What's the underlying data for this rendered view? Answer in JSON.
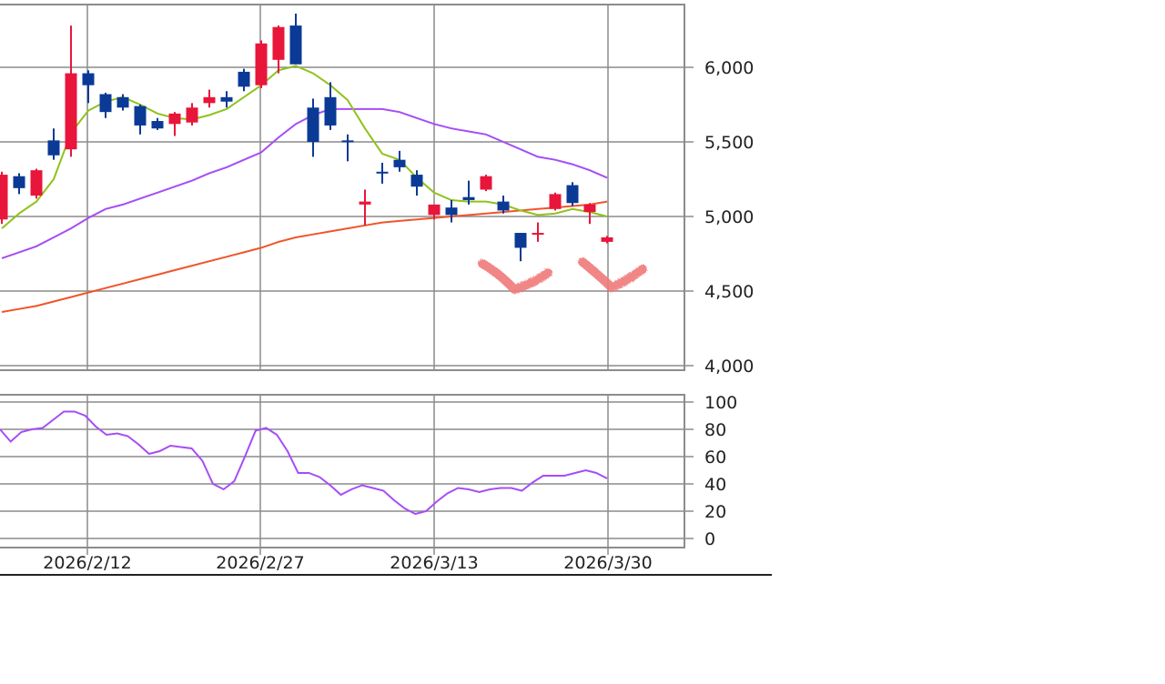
{
  "chart_data": [
    {
      "type": "candlestick",
      "title": "",
      "x_ticks": [
        "2026/2/12",
        "2026/2/27",
        "2026/3/13",
        "2026/3/30"
      ],
      "y_ticks": [
        "4,000",
        "4,500",
        "5,000",
        "5,500",
        "6,000"
      ],
      "ylim": [
        4000,
        6450
      ],
      "grid": true,
      "colors": {
        "up": "#e8163a",
        "down": "#0a3a96",
        "ma_short": "#8fc21a",
        "ma_mid": "#a64df5",
        "ma_long": "#f0552a",
        "frame": "#8c8c8c"
      },
      "candles": [
        {
          "o": 4980,
          "h": 5300,
          "l": 4950,
          "c": 5280
        },
        {
          "o": 5270,
          "h": 5290,
          "l": 5150,
          "c": 5190
        },
        {
          "o": 5140,
          "h": 5320,
          "l": 5120,
          "c": 5310
        },
        {
          "o": 5510,
          "h": 5590,
          "l": 5380,
          "c": 5410
        },
        {
          "o": 5450,
          "h": 6280,
          "l": 5400,
          "c": 5960
        },
        {
          "o": 5960,
          "h": 5980,
          "l": 5760,
          "c": 5880
        },
        {
          "o": 5820,
          "h": 5830,
          "l": 5660,
          "c": 5700
        },
        {
          "o": 5800,
          "h": 5820,
          "l": 5710,
          "c": 5730
        },
        {
          "o": 5740,
          "h": 5750,
          "l": 5550,
          "c": 5610
        },
        {
          "o": 5640,
          "h": 5660,
          "l": 5580,
          "c": 5590
        },
        {
          "o": 5620,
          "h": 5700,
          "l": 5540,
          "c": 5690
        },
        {
          "o": 5630,
          "h": 5760,
          "l": 5610,
          "c": 5730
        },
        {
          "o": 5760,
          "h": 5850,
          "l": 5730,
          "c": 5800
        },
        {
          "o": 5800,
          "h": 5840,
          "l": 5730,
          "c": 5770
        },
        {
          "o": 5970,
          "h": 5990,
          "l": 5840,
          "c": 5870
        },
        {
          "o": 5880,
          "h": 6180,
          "l": 5860,
          "c": 6160
        },
        {
          "o": 6050,
          "h": 6280,
          "l": 5960,
          "c": 6270
        },
        {
          "o": 6280,
          "h": 6360,
          "l": 6020,
          "c": 6020
        },
        {
          "o": 5730,
          "h": 5790,
          "l": 5400,
          "c": 5500
        },
        {
          "o": 5800,
          "h": 5900,
          "l": 5580,
          "c": 5610
        },
        {
          "o": 5510,
          "h": 5550,
          "l": 5370,
          "c": 5500
        },
        {
          "o": 5080,
          "h": 5180,
          "l": 4940,
          "c": 5100
        },
        {
          "o": 5300,
          "h": 5360,
          "l": 5220,
          "c": 5290
        },
        {
          "o": 5380,
          "h": 5440,
          "l": 5300,
          "c": 5330
        },
        {
          "o": 5280,
          "h": 5310,
          "l": 5140,
          "c": 5200
        },
        {
          "o": 5010,
          "h": 5080,
          "l": 4980,
          "c": 5080
        },
        {
          "o": 5060,
          "h": 5110,
          "l": 4960,
          "c": 5010
        },
        {
          "o": 5130,
          "h": 5240,
          "l": 5080,
          "c": 5110
        },
        {
          "o": 5180,
          "h": 5280,
          "l": 5170,
          "c": 5270
        },
        {
          "o": 5100,
          "h": 5140,
          "l": 5020,
          "c": 5040
        },
        {
          "o": 4890,
          "h": 4890,
          "l": 4700,
          "c": 4790
        },
        {
          "o": 4880,
          "h": 4960,
          "l": 4830,
          "c": 4890
        },
        {
          "o": 5050,
          "h": 5160,
          "l": 5040,
          "c": 5150
        },
        {
          "o": 5210,
          "h": 5230,
          "l": 5070,
          "c": 5090
        },
        {
          "o": 5030,
          "h": 5090,
          "l": 4950,
          "c": 5080
        },
        {
          "o": 4830,
          "h": 4870,
          "l": 4820,
          "c": 4860
        }
      ],
      "ma_short": [
        4920,
        5020,
        5100,
        5250,
        5560,
        5710,
        5770,
        5800,
        5750,
        5690,
        5660,
        5650,
        5680,
        5720,
        5800,
        5880,
        5980,
        6010,
        5960,
        5880,
        5780,
        5590,
        5420,
        5380,
        5260,
        5160,
        5110,
        5100,
        5100,
        5080,
        5040,
        5010,
        5020,
        5050,
        5030,
        5000
      ],
      "ma_mid": [
        4720,
        4760,
        4800,
        4860,
        4920,
        4990,
        5050,
        5080,
        5120,
        5160,
        5200,
        5240,
        5290,
        5330,
        5380,
        5430,
        5530,
        5620,
        5680,
        5720,
        5720,
        5720,
        5720,
        5700,
        5660,
        5620,
        5590,
        5570,
        5550,
        5500,
        5450,
        5400,
        5380,
        5350,
        5310,
        5260
      ],
      "ma_long": [
        4360,
        4380,
        4400,
        4430,
        4460,
        4490,
        4520,
        4550,
        4580,
        4610,
        4640,
        4670,
        4700,
        4730,
        4760,
        4790,
        4830,
        4860,
        4880,
        4900,
        4920,
        4940,
        4960,
        4970,
        4980,
        4990,
        5000,
        5010,
        5020,
        5030,
        5040,
        5050,
        5060,
        5070,
        5080,
        5100
      ]
    },
    {
      "type": "line",
      "title": "",
      "y_ticks": [
        "0",
        "20",
        "40",
        "60",
        "80",
        "100"
      ],
      "ylim": [
        0,
        100
      ],
      "grid": true,
      "color": "#a64df5",
      "values": [
        80,
        71,
        78,
        80,
        81,
        87,
        93,
        93,
        90,
        82,
        76,
        77,
        75,
        69,
        62,
        64,
        68,
        67,
        66,
        57,
        40,
        36,
        42,
        60,
        79,
        81,
        76,
        64,
        48,
        48,
        45,
        39,
        32,
        36,
        39,
        37,
        35,
        28,
        22,
        18,
        20,
        27,
        33,
        37,
        36,
        34,
        36,
        37,
        37,
        35,
        41,
        46,
        46,
        46,
        48,
        50,
        48,
        44
      ]
    }
  ]
}
